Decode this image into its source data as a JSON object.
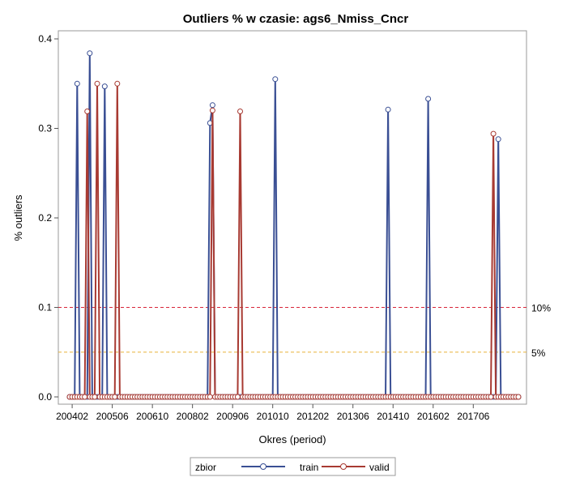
{
  "chart_data": {
    "type": "line",
    "title": "Outliers % w czasie: ags6_Nmiss_Cncr",
    "xlabel": "Okres (period)",
    "ylabel": "% outliers",
    "ylim": [
      0,
      0.4
    ],
    "yticks": [
      "0.0",
      "0.1",
      "0.2",
      "0.3",
      "0.4"
    ],
    "xticks": [
      "200402",
      "200506",
      "200610",
      "200802",
      "200906",
      "201010",
      "201202",
      "201306",
      "201410",
      "201602",
      "201706"
    ],
    "x_start": "2004-01",
    "x_end": "2018-12",
    "grid": false,
    "legend_title": "zbior",
    "reference_lines": [
      {
        "value": 0.1,
        "label": "10%",
        "color": "#d8263a"
      },
      {
        "value": 0.05,
        "label": "5%",
        "color": "#e8b43a"
      }
    ],
    "series": [
      {
        "name": "train",
        "color": "#3a4f94",
        "peaks": [
          {
            "x": "2004-04",
            "y": 0.35
          },
          {
            "x": "2004-09",
            "y": 0.384
          },
          {
            "x": "2005-03",
            "y": 0.347
          },
          {
            "x": "2008-09",
            "y": 0.306
          },
          {
            "x": "2008-10",
            "y": 0.326
          },
          {
            "x": "2010-11",
            "y": 0.355
          },
          {
            "x": "2014-08",
            "y": 0.321
          },
          {
            "x": "2015-12",
            "y": 0.333
          },
          {
            "x": "2018-04",
            "y": 0.288
          }
        ]
      },
      {
        "name": "valid",
        "color": "#a83a32",
        "peaks": [
          {
            "x": "2004-08",
            "y": 0.319
          },
          {
            "x": "2004-12",
            "y": 0.35
          },
          {
            "x": "2005-08",
            "y": 0.35
          },
          {
            "x": "2008-10",
            "y": 0.32
          },
          {
            "x": "2009-09",
            "y": 0.319
          },
          {
            "x": "2018-02",
            "y": 0.294
          }
        ]
      }
    ]
  }
}
